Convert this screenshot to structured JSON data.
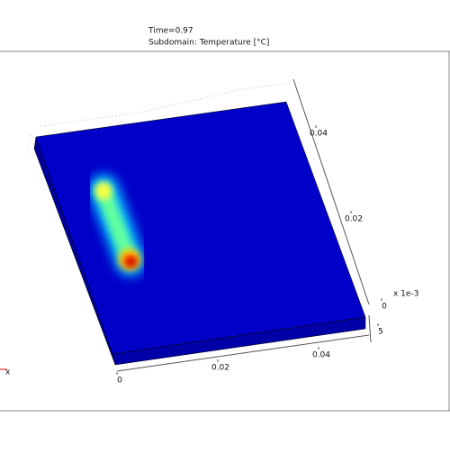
{
  "chart_data": {
    "type": "surface3d",
    "title": "Time=0.97",
    "subtitle": "Subdomain: Temperature [°C]",
    "xticks": [
      0,
      0.02,
      0.04
    ],
    "yticks": [
      0.02,
      0.04
    ],
    "zticks": [
      0,
      5
    ],
    "z_multiplier": "x 1e-3",
    "triad_label": "x",
    "colormap": [
      "#0000b0",
      "#00c8ff",
      "#ffff40",
      "#ff2000",
      "#a00000"
    ]
  }
}
